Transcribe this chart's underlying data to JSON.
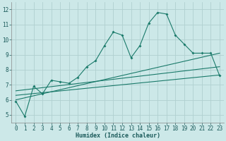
{
  "xlabel": "Humidex (Indice chaleur)",
  "ylabel": "",
  "bg_color": "#cce8e8",
  "grid_color": "#b0d0d0",
  "line_color": "#1a7a6a",
  "xlim": [
    -0.5,
    23.5
  ],
  "ylim": [
    4.5,
    12.5
  ],
  "xticks": [
    0,
    1,
    2,
    3,
    4,
    5,
    6,
    7,
    8,
    9,
    10,
    11,
    12,
    13,
    14,
    15,
    16,
    17,
    18,
    19,
    20,
    21,
    22,
    23
  ],
  "yticks": [
    5,
    6,
    7,
    8,
    9,
    10,
    11,
    12
  ],
  "series1_x": [
    0,
    1,
    2,
    3,
    4,
    5,
    6,
    7,
    8,
    9,
    10,
    11,
    12,
    13,
    14,
    15,
    16,
    17,
    18,
    19,
    20,
    21,
    22,
    23
  ],
  "series1_y": [
    5.9,
    4.9,
    6.9,
    6.4,
    7.3,
    7.2,
    7.1,
    7.5,
    8.2,
    8.6,
    9.6,
    10.5,
    10.3,
    8.8,
    9.6,
    11.1,
    11.8,
    11.7,
    10.3,
    9.7,
    9.1,
    9.1,
    9.1,
    7.6
  ],
  "series2_x": [
    0,
    23
  ],
  "series2_y": [
    6.0,
    9.1
  ],
  "series3_x": [
    0,
    23
  ],
  "series3_y": [
    6.6,
    8.2
  ],
  "series4_x": [
    0,
    23
  ],
  "series4_y": [
    6.3,
    7.65
  ]
}
